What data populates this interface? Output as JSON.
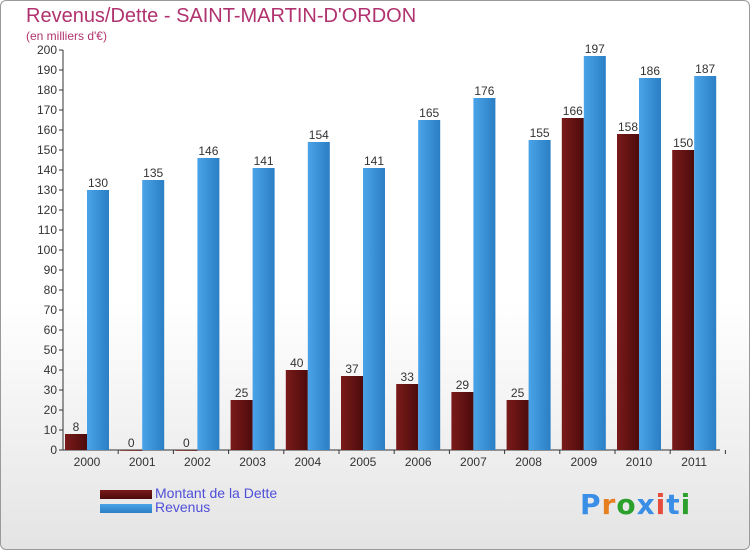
{
  "title": "Revenus/Dette - SAINT-MARTIN-D'ORDON",
  "subtitle": "(en milliers d'€)",
  "logo": {
    "text": "Proxiti",
    "colors": [
      "#3a8ee6",
      "#e67e22",
      "#2ca02c",
      "#3a8ee6",
      "#e74c3c",
      "#3a8ee6",
      "#2ca02c"
    ]
  },
  "colors": {
    "dette": "#7a1a1a",
    "dette_dark": "#4d0b0b",
    "revenus": "#4aa3e8",
    "revenus_dark": "#2b7fc4",
    "title": "#b0336f",
    "legend_text": "#4f4fd8"
  },
  "chart_data": {
    "type": "bar",
    "categories": [
      "2000",
      "2001",
      "2002",
      "2003",
      "2004",
      "2005",
      "2006",
      "2007",
      "2008",
      "2009",
      "2010",
      "2011"
    ],
    "series": [
      {
        "name": "Montant de la Dette",
        "values": [
          8,
          0,
          0,
          25,
          40,
          37,
          33,
          29,
          25,
          166,
          158,
          150
        ]
      },
      {
        "name": "Revenus",
        "values": [
          130,
          135,
          146,
          141,
          154,
          141,
          165,
          176,
          155,
          197,
          186,
          187
        ]
      }
    ],
    "ylim": [
      0,
      200
    ],
    "yticks": [
      "0",
      "10",
      "20",
      "30",
      "40",
      "50",
      "60",
      "70",
      "80",
      "90",
      "100",
      "110",
      "120",
      "130",
      "140",
      "150",
      "160",
      "170",
      "180",
      "190",
      "200"
    ],
    "grid": false,
    "legend_position": "bottom-left"
  }
}
